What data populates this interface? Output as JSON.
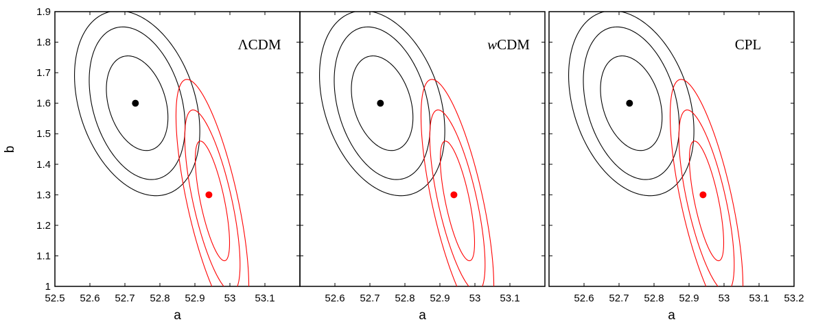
{
  "chart_data": {
    "type": "scatter",
    "shared_y_label": "b",
    "colors": {
      "black_series": "#000000",
      "red_series": "#ff0000"
    },
    "ylim": [
      1.0,
      1.9
    ],
    "y_ticks": [
      {
        "value": 1.0,
        "label": "1"
      },
      {
        "value": 1.1,
        "label": "1.1"
      },
      {
        "value": 1.2,
        "label": "1.2"
      },
      {
        "value": 1.3,
        "label": "1.3"
      },
      {
        "value": 1.4,
        "label": "1.4"
      },
      {
        "value": 1.5,
        "label": "1.5"
      },
      {
        "value": 1.6,
        "label": "1.6"
      },
      {
        "value": 1.7,
        "label": "1.7"
      },
      {
        "value": 1.8,
        "label": "1.8"
      },
      {
        "value": 1.9,
        "label": "1.9"
      }
    ],
    "panels": [
      {
        "model_label": "ΛCDM",
        "xlabel": "a",
        "xlim": [
          52.5,
          53.2
        ],
        "x_ticks": [
          {
            "value": 52.5,
            "label": "52.5"
          },
          {
            "value": 52.6,
            "label": "52.6"
          },
          {
            "value": 52.7,
            "label": "52.7"
          },
          {
            "value": 52.8,
            "label": "52.8"
          },
          {
            "value": 52.9,
            "label": "52.9"
          },
          {
            "value": 53.0,
            "label": "53"
          },
          {
            "value": 53.1,
            "label": "53.1"
          }
        ],
        "series": [
          {
            "color": "black",
            "best_fit": {
              "a": 52.73,
              "b": 1.6
            },
            "contours": [
              {
                "a": 52.735,
                "b": 1.6,
                "sa": 0.088,
                "sb": 0.155,
                "rho": -0.3
              },
              {
                "a": 52.735,
                "b": 1.6,
                "sa": 0.137,
                "sb": 0.25,
                "rho": -0.3
              },
              {
                "a": 52.735,
                "b": 1.6,
                "sa": 0.179,
                "sb": 0.303,
                "rho": -0.3
              }
            ]
          },
          {
            "color": "red",
            "best_fit": {
              "a": 52.94,
              "b": 1.3
            },
            "contours": [
              {
                "a": 52.95,
                "b": 1.28,
                "sa": 0.049,
                "sb": 0.196,
                "rho": -0.7
              },
              {
                "a": 52.95,
                "b": 1.28,
                "sa": 0.079,
                "sb": 0.298,
                "rho": -0.7
              },
              {
                "a": 52.95,
                "b": 1.28,
                "sa": 0.104,
                "sb": 0.398,
                "rho": -0.7
              }
            ]
          }
        ]
      },
      {
        "model_label": "wCDM",
        "xlabel": "a",
        "xlim": [
          52.5,
          53.2
        ],
        "x_ticks": [
          {
            "value": 52.6,
            "label": "52.6"
          },
          {
            "value": 52.7,
            "label": "52.7"
          },
          {
            "value": 52.8,
            "label": "52.8"
          },
          {
            "value": 52.9,
            "label": "52.9"
          },
          {
            "value": 53.0,
            "label": "53"
          },
          {
            "value": 53.1,
            "label": "53.1"
          }
        ],
        "series": [
          {
            "color": "black",
            "best_fit": {
              "a": 52.73,
              "b": 1.6
            },
            "contours": [
              {
                "a": 52.735,
                "b": 1.6,
                "sa": 0.088,
                "sb": 0.155,
                "rho": -0.3
              },
              {
                "a": 52.735,
                "b": 1.6,
                "sa": 0.137,
                "sb": 0.25,
                "rho": -0.3
              },
              {
                "a": 52.735,
                "b": 1.6,
                "sa": 0.179,
                "sb": 0.303,
                "rho": -0.3
              }
            ]
          },
          {
            "color": "red",
            "best_fit": {
              "a": 52.94,
              "b": 1.3
            },
            "contours": [
              {
                "a": 52.95,
                "b": 1.28,
                "sa": 0.049,
                "sb": 0.196,
                "rho": -0.7
              },
              {
                "a": 52.95,
                "b": 1.28,
                "sa": 0.079,
                "sb": 0.298,
                "rho": -0.7
              },
              {
                "a": 52.95,
                "b": 1.28,
                "sa": 0.104,
                "sb": 0.398,
                "rho": -0.7
              }
            ]
          }
        ]
      },
      {
        "model_label": "CPL",
        "xlabel": "a",
        "xlim": [
          52.5,
          53.2
        ],
        "x_ticks": [
          {
            "value": 52.6,
            "label": "52.6"
          },
          {
            "value": 52.7,
            "label": "52.7"
          },
          {
            "value": 52.8,
            "label": "52.8"
          },
          {
            "value": 52.9,
            "label": "52.9"
          },
          {
            "value": 53.0,
            "label": "53"
          },
          {
            "value": 53.1,
            "label": "53.1"
          },
          {
            "value": 53.2,
            "label": "53.2"
          }
        ],
        "series": [
          {
            "color": "black",
            "best_fit": {
              "a": 52.73,
              "b": 1.6
            },
            "contours": [
              {
                "a": 52.735,
                "b": 1.6,
                "sa": 0.088,
                "sb": 0.155,
                "rho": -0.3
              },
              {
                "a": 52.735,
                "b": 1.6,
                "sa": 0.137,
                "sb": 0.25,
                "rho": -0.3
              },
              {
                "a": 52.735,
                "b": 1.6,
                "sa": 0.179,
                "sb": 0.303,
                "rho": -0.3
              }
            ]
          },
          {
            "color": "red",
            "best_fit": {
              "a": 52.94,
              "b": 1.3
            },
            "contours": [
              {
                "a": 52.95,
                "b": 1.28,
                "sa": 0.049,
                "sb": 0.196,
                "rho": -0.7
              },
              {
                "a": 52.95,
                "b": 1.28,
                "sa": 0.079,
                "sb": 0.298,
                "rho": -0.7
              },
              {
                "a": 52.95,
                "b": 1.28,
                "sa": 0.104,
                "sb": 0.398,
                "rho": -0.7
              }
            ]
          }
        ]
      }
    ]
  }
}
